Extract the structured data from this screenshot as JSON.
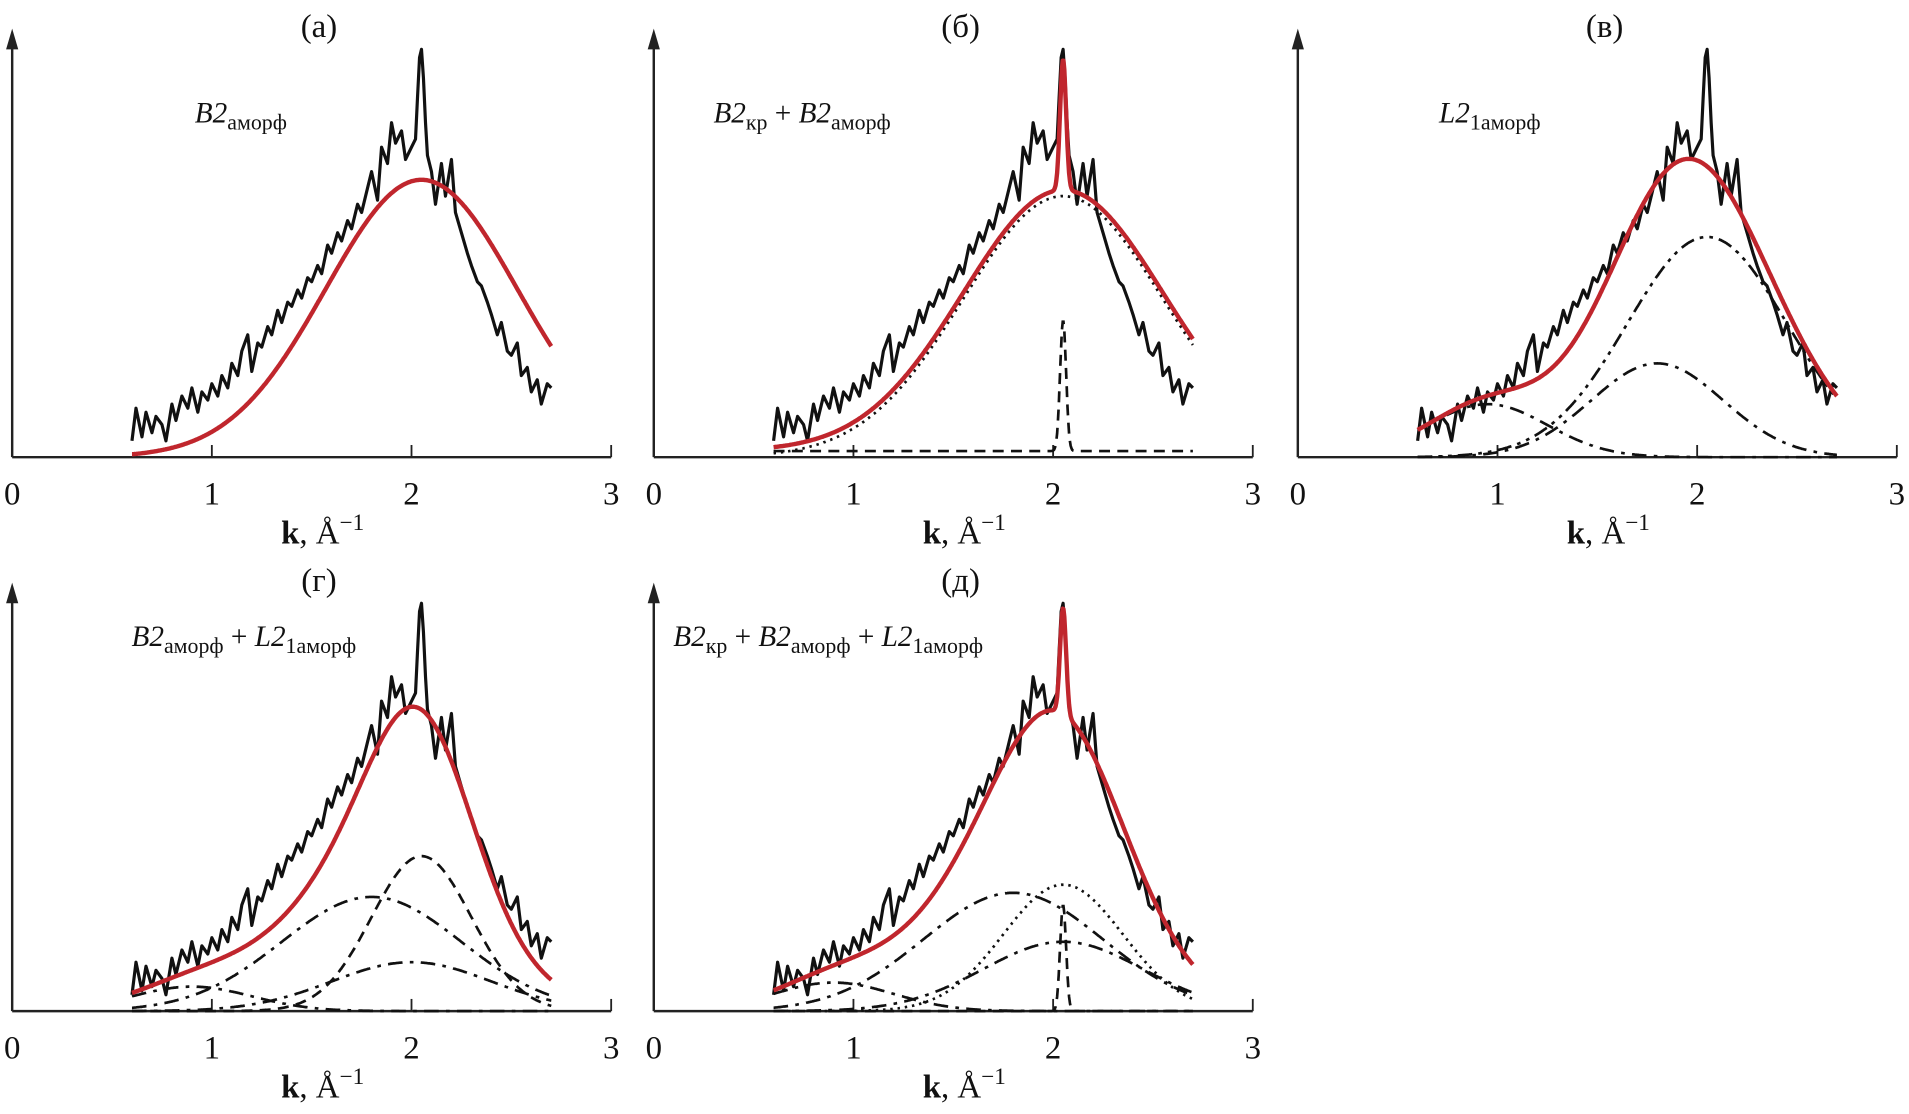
{
  "chart_data": {
    "type": "line",
    "xlabel": {
      "symbol": "k",
      "unit": ", Å",
      "exp": "−1"
    },
    "xticks": [
      "0",
      "1",
      "2",
      "3"
    ],
    "xlim": [
      0,
      3
    ],
    "colors": {
      "experiment": "#111111",
      "fit": "#c0262d",
      "components": "#111111"
    },
    "experiment": {
      "k": [
        0.6,
        0.62,
        0.65,
        0.67,
        0.7,
        0.72,
        0.75,
        0.77,
        0.8,
        0.82,
        0.85,
        0.88,
        0.9,
        0.93,
        0.95,
        0.98,
        1.0,
        1.03,
        1.05,
        1.08,
        1.1,
        1.13,
        1.15,
        1.18,
        1.2,
        1.23,
        1.25,
        1.28,
        1.3,
        1.33,
        1.35,
        1.38,
        1.4,
        1.43,
        1.45,
        1.48,
        1.5,
        1.53,
        1.55,
        1.58,
        1.6,
        1.63,
        1.65,
        1.68,
        1.7,
        1.73,
        1.75,
        1.78,
        1.8,
        1.83,
        1.85,
        1.88,
        1.9,
        1.92,
        1.95,
        1.97,
        2.0,
        2.02,
        2.03,
        2.04,
        2.05,
        2.06,
        2.07,
        2.08,
        2.1,
        2.12,
        2.15,
        2.17,
        2.2,
        2.22,
        2.25,
        2.28,
        2.3,
        2.33,
        2.35,
        2.38,
        2.4,
        2.43,
        2.45,
        2.48,
        2.5,
        2.53,
        2.55,
        2.58,
        2.6,
        2.63,
        2.65,
        2.68,
        2.7
      ],
      "y": [
        0.04,
        0.12,
        0.05,
        0.11,
        0.06,
        0.1,
        0.08,
        0.04,
        0.13,
        0.09,
        0.15,
        0.12,
        0.17,
        0.11,
        0.16,
        0.14,
        0.18,
        0.15,
        0.2,
        0.17,
        0.23,
        0.2,
        0.26,
        0.3,
        0.21,
        0.28,
        0.27,
        0.32,
        0.3,
        0.36,
        0.33,
        0.38,
        0.37,
        0.41,
        0.39,
        0.44,
        0.43,
        0.47,
        0.45,
        0.52,
        0.5,
        0.55,
        0.53,
        0.58,
        0.56,
        0.62,
        0.6,
        0.66,
        0.7,
        0.63,
        0.76,
        0.72,
        0.82,
        0.77,
        0.8,
        0.73,
        0.76,
        0.78,
        0.88,
        0.98,
        1.0,
        0.93,
        0.82,
        0.74,
        0.7,
        0.62,
        0.72,
        0.64,
        0.73,
        0.6,
        0.55,
        0.5,
        0.47,
        0.43,
        0.42,
        0.38,
        0.35,
        0.3,
        0.33,
        0.26,
        0.25,
        0.28,
        0.2,
        0.22,
        0.16,
        0.19,
        0.13,
        0.18,
        0.17
      ]
    },
    "panels": [
      {
        "title": "(а)",
        "label": [
          {
            "t": "B2",
            "style": "italic"
          },
          {
            "t": "аморф",
            "style": "sub"
          }
        ],
        "components": [
          {
            "center": 2.05,
            "height": 0.68,
            "sigma": 0.48,
            "offset": 0,
            "line": "none"
          }
        ]
      },
      {
        "title": "(б)",
        "label": [
          {
            "t": "B2",
            "style": "italic"
          },
          {
            "t": "кр",
            "style": "sub"
          },
          {
            "t": " + ",
            "style": "normal"
          },
          {
            "t": "B2",
            "style": "italic"
          },
          {
            "t": "аморф",
            "style": "sub"
          }
        ],
        "components": [
          {
            "center": 2.05,
            "height": 0.64,
            "sigma": 0.5,
            "offset": 0,
            "line": "dotted"
          },
          {
            "center": 2.05,
            "height": 0.32,
            "sigma": 0.015,
            "offset": 0.015,
            "line": "dashed"
          }
        ]
      },
      {
        "title": "(в)",
        "label": [
          {
            "t": "L2",
            "style": "italic"
          },
          {
            "t": "1аморф",
            "style": "sub"
          }
        ],
        "components": [
          {
            "center": 2.05,
            "height": 0.54,
            "sigma": 0.4,
            "offset": 0,
            "line": "dash-dot-dot"
          },
          {
            "center": 1.8,
            "height": 0.23,
            "sigma": 0.33,
            "offset": 0,
            "line": "dash-dot"
          },
          {
            "center": 0.95,
            "height": 0.13,
            "sigma": 0.3,
            "offset": 0,
            "line": "dash-dot"
          }
        ]
      },
      {
        "title": "(г)",
        "label": [
          {
            "t": "B2",
            "style": "italic"
          },
          {
            "t": "аморф",
            "style": "sub"
          },
          {
            "t": " + ",
            "style": "normal"
          },
          {
            "t": "L2",
            "style": "italic"
          },
          {
            "t": "1аморф",
            "style": "sub"
          }
        ],
        "components": [
          {
            "center": 2.05,
            "height": 0.38,
            "sigma": 0.25,
            "offset": 0,
            "line": "dashed"
          },
          {
            "center": 1.8,
            "height": 0.28,
            "sigma": 0.45,
            "offset": 0,
            "line": "dash-dot"
          },
          {
            "center": 2.0,
            "height": 0.12,
            "sigma": 0.4,
            "offset": 0,
            "line": "dash-dot"
          },
          {
            "center": 0.9,
            "height": 0.06,
            "sigma": 0.3,
            "offset": 0,
            "line": "dash-dot"
          }
        ]
      },
      {
        "title": "(д)",
        "label": [
          {
            "t": "B2",
            "style": "italic"
          },
          {
            "t": "кр",
            "style": "sub"
          },
          {
            "t": " + ",
            "style": "normal"
          },
          {
            "t": "B2",
            "style": "italic"
          },
          {
            "t": "аморф",
            "style": "sub"
          },
          {
            "t": " + ",
            "style": "normal"
          },
          {
            "t": "L2",
            "style": "italic"
          },
          {
            "t": "1аморф",
            "style": "sub"
          }
        ],
        "components": [
          {
            "center": 2.05,
            "height": 0.31,
            "sigma": 0.3,
            "offset": 0,
            "line": "dotted"
          },
          {
            "center": 1.8,
            "height": 0.29,
            "sigma": 0.45,
            "offset": 0,
            "line": "dash-dot"
          },
          {
            "center": 2.05,
            "height": 0.17,
            "sigma": 0.4,
            "offset": 0,
            "line": "dash-dot"
          },
          {
            "center": 2.05,
            "height": 0.26,
            "sigma": 0.015,
            "offset": 0,
            "line": "dashed"
          },
          {
            "center": 0.9,
            "height": 0.07,
            "sigma": 0.3,
            "offset": 0,
            "line": "dash-dot"
          }
        ]
      }
    ]
  }
}
